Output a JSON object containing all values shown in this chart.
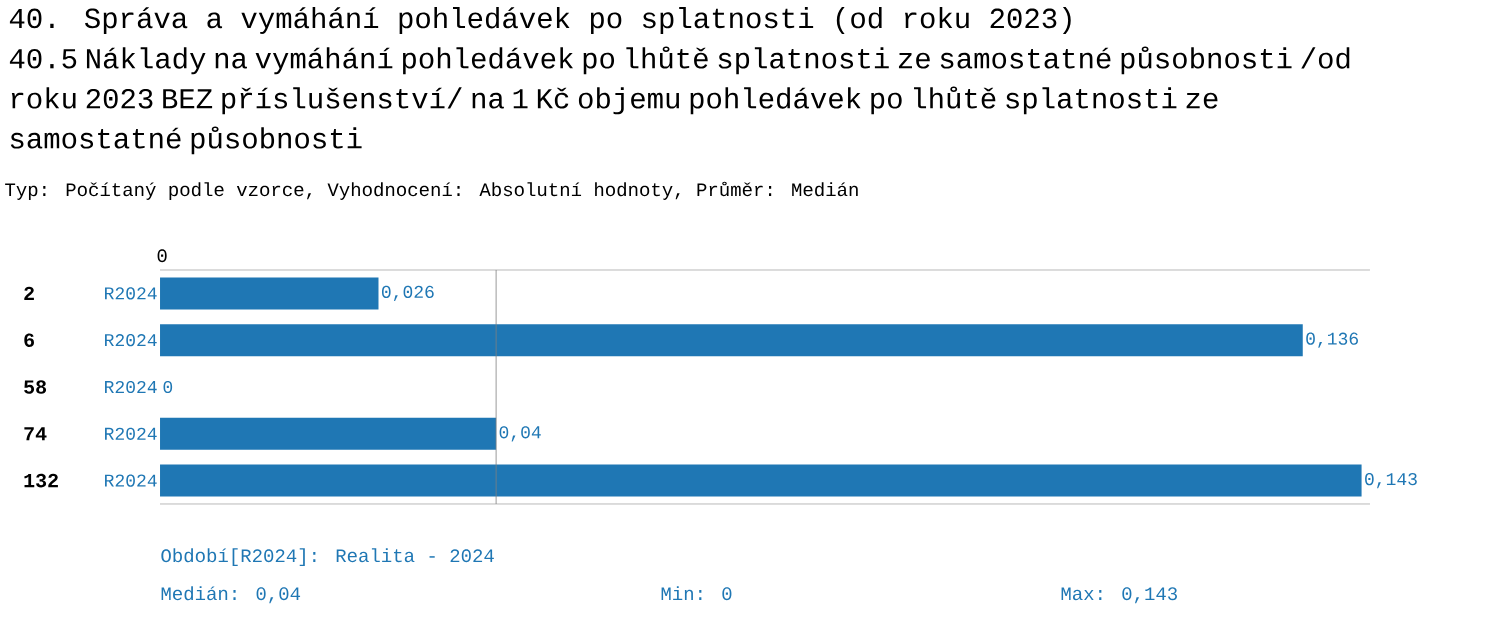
{
  "chart_data": {
    "type": "bar",
    "orientation": "horizontal",
    "title": "40. Správa a vymáhání pohledávek po splatnosti (od roku 2023)",
    "subtitle": "40.5 Náklady na vymáhání pohledávek po lhůtě splatnosti ze samostatné působnosti /od roku 2023 BEZ příslušenství/ na 1 Kč objemu pohledávek po lhůtě splatnosti ze samostatné působnosti",
    "categories": [
      "2",
      "6",
      "58",
      "74",
      "132"
    ],
    "series": [
      {
        "name": "R2024",
        "color": "#1f77b4",
        "values": [
          0.026,
          0.136,
          0,
          0.04,
          0.143
        ],
        "value_labels": [
          "0,026",
          "0,136",
          "0",
          "0,04",
          "0,143"
        ]
      }
    ],
    "xlim": [
      0,
      0.144
    ],
    "ref_lines": [
      {
        "axis": "x",
        "value": 0.04,
        "color": "#808080"
      }
    ],
    "annotations": [
      "Typ: Počítaný podle vzorce, Vyhodnocení: Absolutní hodnoty, Průměr: Medián",
      "0",
      "Období[R2024]: Realita - 2024",
      "Medián: 0,04",
      "Min: 0",
      "Max: 0,143"
    ],
    "grid": false
  }
}
